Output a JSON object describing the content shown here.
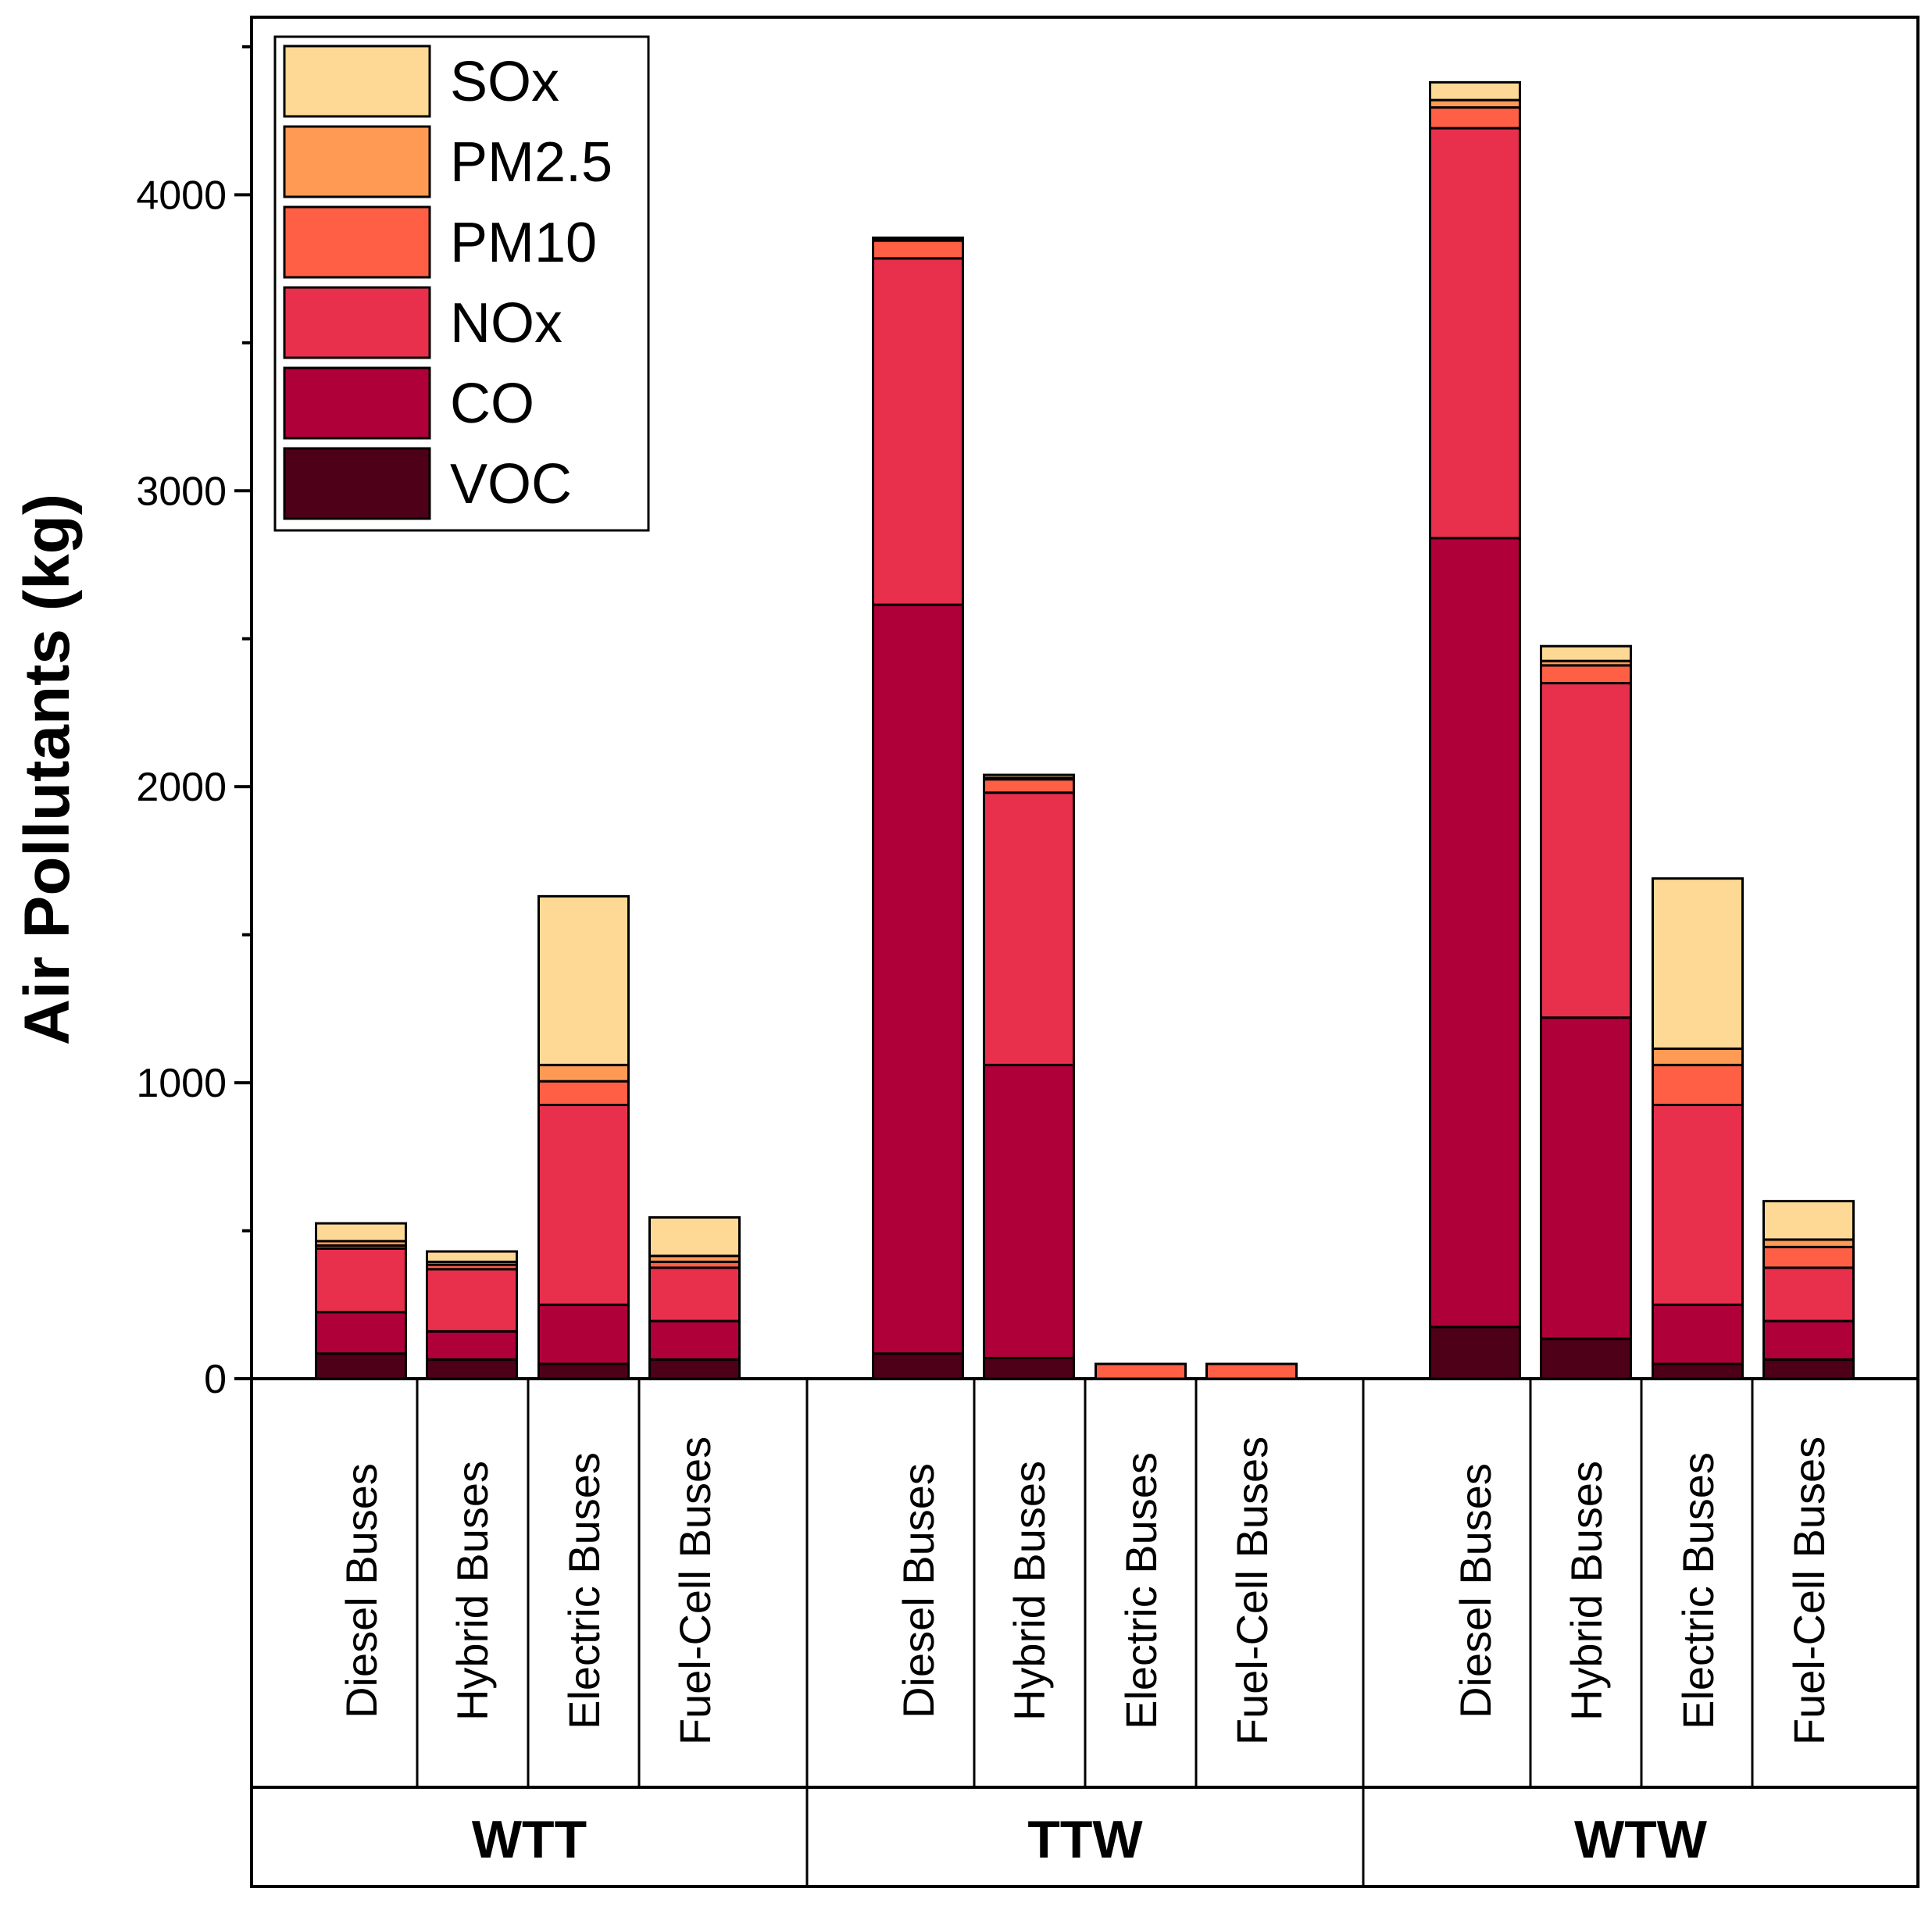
{
  "chart_data": {
    "type": "bar",
    "stacked": true,
    "title": "",
    "xlabel": "",
    "ylabel": "Air Pollutants (kg)",
    "ylim": [
      0,
      4600
    ],
    "yticks": [
      0,
      1000,
      2000,
      3000,
      4000
    ],
    "groups": [
      {
        "name": "WTT",
        "categories": [
          "Diesel Buses",
          "Hybrid Buses",
          "Electric Buses",
          "Fuel-Cell Buses"
        ]
      },
      {
        "name": "TTW",
        "categories": [
          "Diesel Buses",
          "Hybrid Buses",
          "Electric Buses",
          "Fuel-Cell Buses"
        ]
      },
      {
        "name": "WTW",
        "categories": [
          "Diesel Buses",
          "Hybrid Buses",
          "Electric Buses",
          "Fuel-Cell Buses"
        ]
      }
    ],
    "series": [
      {
        "name": "VOC",
        "color": "#4d0018",
        "values": [
          85,
          65,
          50,
          65,
          85,
          70,
          0,
          0,
          175,
          135,
          50,
          65
        ]
      },
      {
        "name": "CO",
        "color": "#b0003a",
        "values": [
          140,
          95,
          200,
          130,
          2530,
          990,
          0,
          0,
          2665,
          1085,
          200,
          130
        ]
      },
      {
        "name": "NOx",
        "color": "#e8304c",
        "values": [
          215,
          210,
          675,
          180,
          1170,
          920,
          0,
          0,
          1385,
          1130,
          675,
          180
        ]
      },
      {
        "name": "PM10",
        "color": "#ff5f45",
        "values": [
          10,
          15,
          80,
          20,
          60,
          45,
          50,
          50,
          70,
          60,
          135,
          70
        ]
      },
      {
        "name": "PM2.5",
        "color": "#ff9a55",
        "values": [
          15,
          10,
          55,
          20,
          5,
          5,
          0,
          0,
          25,
          15,
          55,
          25
        ]
      },
      {
        "name": "SOx",
        "color": "#fdd995",
        "values": [
          60,
          35,
          570,
          130,
          5,
          10,
          0,
          0,
          60,
          50,
          575,
          130
        ]
      }
    ],
    "legend": {
      "position": "top-left",
      "order": [
        "SOx",
        "PM2.5",
        "PM10",
        "NOx",
        "CO",
        "VOC"
      ]
    }
  }
}
